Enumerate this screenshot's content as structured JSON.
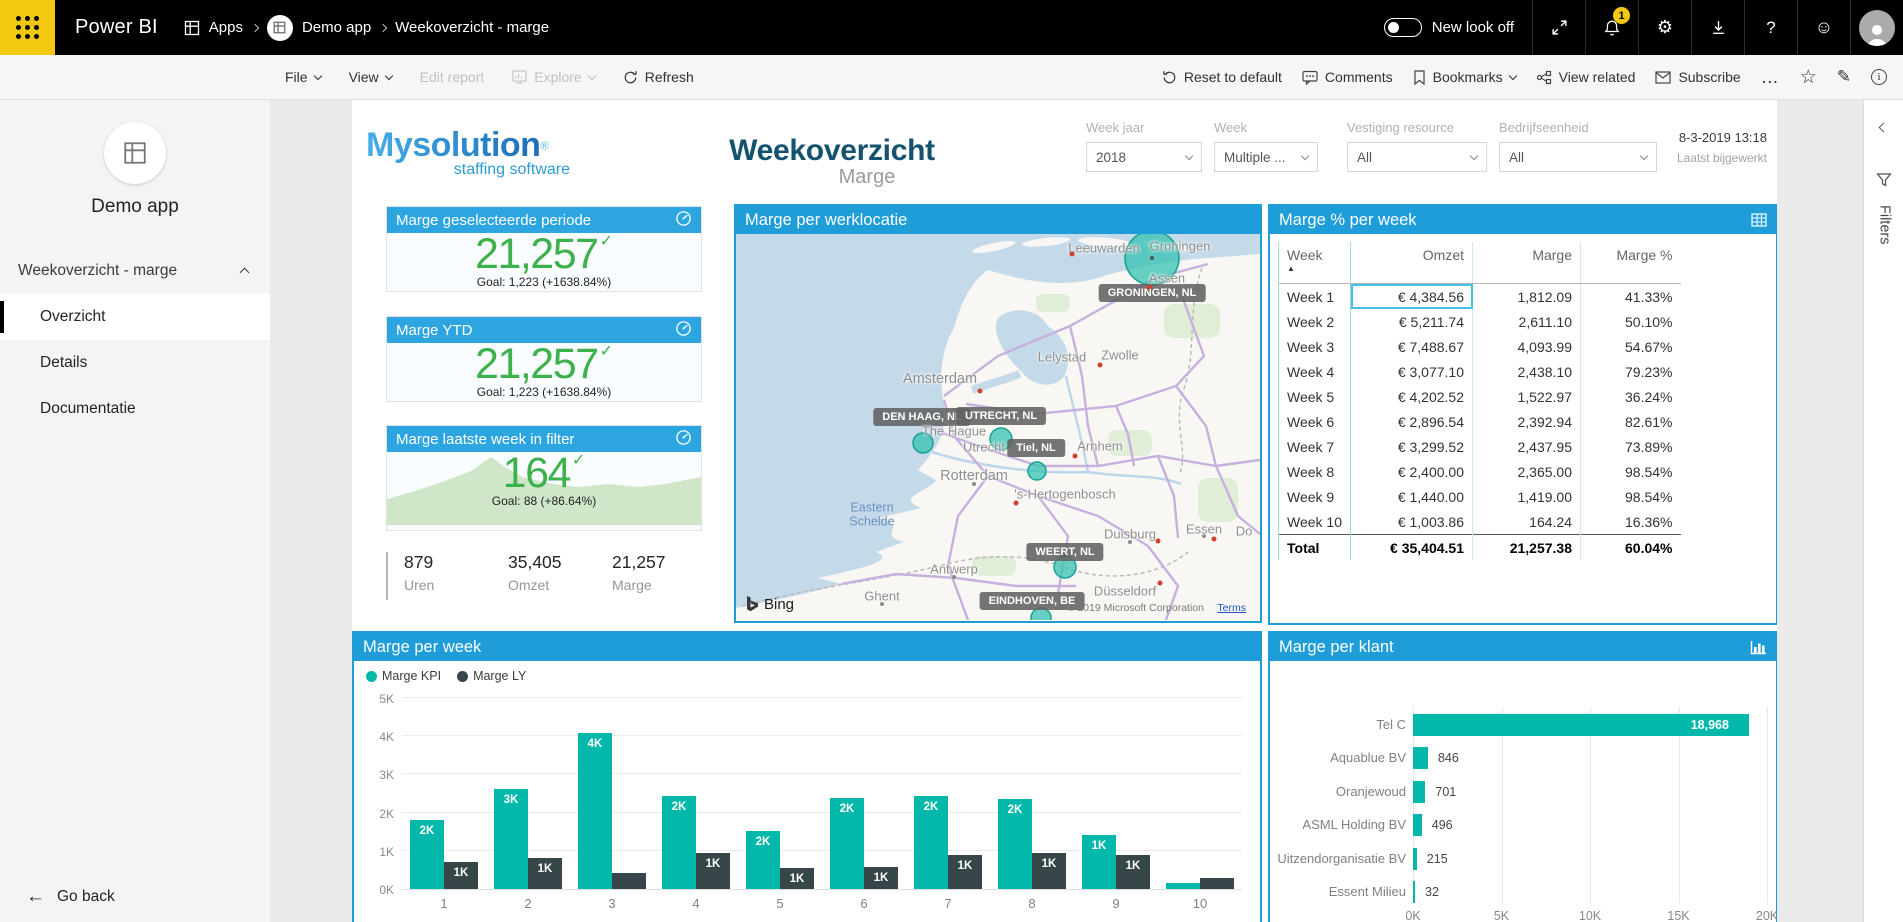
{
  "topbar": {
    "product": "Power BI",
    "apps": "Apps",
    "app": "Demo app",
    "page": "Weekoverzicht - marge",
    "new_look": "New look off",
    "badge": "1"
  },
  "toolbar": {
    "file": "File",
    "view": "View",
    "edit_report": "Edit report",
    "explore": "Explore",
    "refresh": "Refresh",
    "reset": "Reset to default",
    "comments": "Comments",
    "bookmarks": "Bookmarks",
    "view_related": "View related",
    "subscribe": "Subscribe",
    "more": "…"
  },
  "sidebar": {
    "app_title": "Demo app",
    "section": "Weekoverzicht - marge",
    "items": [
      {
        "label": "Overzicht",
        "selected": true
      },
      {
        "label": "Details",
        "selected": false
      },
      {
        "label": "Documentatie",
        "selected": false
      }
    ],
    "go_back": "Go back"
  },
  "header": {
    "brand": "Mysolution",
    "brand_reg": "®",
    "tagline": "staffing software",
    "title": "Weekoverzicht",
    "subtitle": "Marge",
    "updated_time": "8-3-2019 13:18",
    "updated_label": "Laatst bijgewerkt"
  },
  "slicers": [
    {
      "label": "Week jaar",
      "value": "2018"
    },
    {
      "label": "Week",
      "value": "Multiple ..."
    },
    {
      "label": "Vestiging resource",
      "value": "All"
    },
    {
      "label": "Bedrijfseenheid",
      "value": "All"
    }
  ],
  "kpis": [
    {
      "title": "Marge geselecteerde periode",
      "value": "21,257",
      "goal": "Goal: 1,223 (+1638.84%)",
      "sparkline": false
    },
    {
      "title": "Marge YTD",
      "value": "21,257",
      "goal": "Goal: 1,223 (+1638.84%)",
      "sparkline": false
    },
    {
      "title": "Marge laatste week in filter",
      "value": "164",
      "goal": "Goal: 88 (+86.64%)",
      "sparkline": true
    }
  ],
  "stats": [
    {
      "value": "879",
      "label": "Uren"
    },
    {
      "value": "35,405",
      "label": "Omzet"
    },
    {
      "value": "21,257",
      "label": "Marge"
    }
  ],
  "map": {
    "title": "Marge per werklocatie",
    "bubble_labels": [
      "GRONINGEN, NL",
      "DEN HAAG, NL",
      "UTRECHT, NL",
      "Tiel, NL",
      "WEERT, NL",
      "EINDHOVEN, BE"
    ],
    "places": [
      "Leeuwarden",
      "Groningen",
      "Assen",
      "Lelystad",
      "Zwolle",
      "Amsterdam",
      "The Hague",
      "Utrecht",
      "Arnhem",
      "Rotterdam",
      "'s-Hertogenbosch",
      "Duisburg",
      "Essen",
      "Do",
      "Antwerp",
      "Düsseldorf",
      "Ghent"
    ],
    "water_label": "Eastern Schelde",
    "bing": "Bing",
    "copyright": "© 2019 Microsoft Corporation",
    "terms": "Terms"
  },
  "filters_pane": {
    "label": "Filters"
  },
  "chart_data": [
    {
      "type": "table",
      "title": "Marge % per week",
      "columns": [
        "Week",
        "Omzet",
        "Marge",
        "Marge %"
      ],
      "rows": [
        [
          "Week 1",
          "€ 4,384.56",
          "1,812.09",
          "41.33%"
        ],
        [
          "Week 2",
          "€ 5,211.74",
          "2,611.10",
          "50.10%"
        ],
        [
          "Week 3",
          "€ 7,488.67",
          "4,093.99",
          "54.67%"
        ],
        [
          "Week 4",
          "€ 3,077.10",
          "2,438.10",
          "79.23%"
        ],
        [
          "Week 5",
          "€ 4,202.52",
          "1,522.97",
          "36.24%"
        ],
        [
          "Week 6",
          "€ 2,896.54",
          "2,392.94",
          "82.61%"
        ],
        [
          "Week 7",
          "€ 3,299.52",
          "2,437.95",
          "73.89%"
        ],
        [
          "Week 8",
          "€ 2,400.00",
          "2,365.00",
          "98.54%"
        ],
        [
          "Week 9",
          "€ 1,440.00",
          "1,419.00",
          "98.54%"
        ],
        [
          "Week 10",
          "€ 1,003.86",
          "164.24",
          "16.36%"
        ]
      ],
      "total": [
        "Total",
        "€ 35,404.51",
        "21,257.38",
        "60.04%"
      ],
      "sorted_by": "Week ascending",
      "selected_cell": {
        "row": 0,
        "col": 1
      }
    },
    {
      "type": "bar",
      "title": "Marge per week",
      "categories": [
        "1",
        "2",
        "3",
        "4",
        "5",
        "6",
        "7",
        "8",
        "9",
        "10"
      ],
      "series": [
        {
          "name": "Marge KPI",
          "color": "#01B8AA",
          "values": [
            1812,
            2611,
            4094,
            2438,
            1523,
            2393,
            2438,
            2365,
            1419,
            164
          ],
          "labels": [
            "2K",
            "3K",
            "4K",
            "2K",
            "2K",
            "2K",
            "2K",
            "2K",
            "1K",
            ""
          ]
        },
        {
          "name": "Marge LY",
          "color": "#374649",
          "values": [
            700,
            800,
            430,
            950,
            560,
            570,
            900,
            930,
            880,
            300
          ],
          "labels": [
            "1K",
            "1K",
            "",
            "1K",
            "1K",
            "1K",
            "1K",
            "1K",
            "1K",
            ""
          ]
        }
      ],
      "ylim": [
        0,
        5000
      ],
      "yticks": [
        "0K",
        "1K",
        "2K",
        "3K",
        "4K",
        "5K"
      ],
      "legend_position": "top-left",
      "grid": true
    },
    {
      "type": "bar",
      "orientation": "horizontal",
      "title": "Marge per klant",
      "categories": [
        "Tel C",
        "Aquablue BV",
        "Oranjewoud",
        "ASML Holding BV",
        "Uitzendorganisatie BV",
        "Essent Milieu"
      ],
      "values": [
        18968,
        846,
        701,
        496,
        215,
        32
      ],
      "labels": [
        "18,968",
        "846",
        "701",
        "496",
        "215",
        "32"
      ],
      "xlim": [
        0,
        20000
      ],
      "xticks": [
        "0K",
        "5K",
        "10K",
        "15K",
        "20K"
      ],
      "grid": true
    }
  ]
}
